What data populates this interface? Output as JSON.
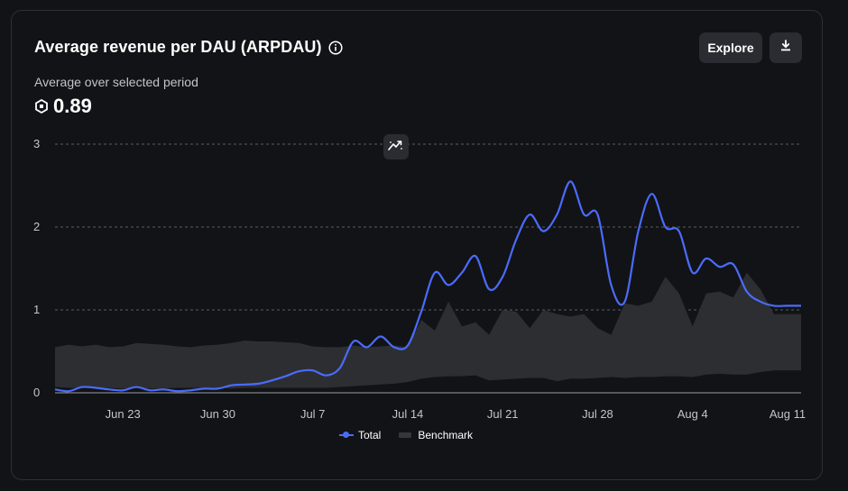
{
  "header": {
    "title": "Average revenue per DAU (ARPDAU)",
    "subtitle": "Average over selected period",
    "metric_value": "0.89",
    "explore_label": "Explore"
  },
  "icons": {
    "info": "info-icon",
    "currency": "robux-icon",
    "download": "download-icon",
    "trend": "trend-icon"
  },
  "colors": {
    "total": "#4b6bfb",
    "benchmark": "#2d2e32",
    "grid": "#5a5c62"
  },
  "chart_data": {
    "type": "line",
    "title": "Average revenue per DAU (ARPDAU)",
    "ylim": [
      0,
      3
    ],
    "yticks": [
      "0",
      "1",
      "2",
      "3"
    ],
    "xlim": [
      0,
      55
    ],
    "xticks": [
      {
        "label": "Jun 23",
        "x": 5
      },
      {
        "label": "Jun 30",
        "x": 12
      },
      {
        "label": "Jul 7",
        "x": 19
      },
      {
        "label": "Jul 14",
        "x": 26
      },
      {
        "label": "Jul 21",
        "x": 33
      },
      {
        "label": "Jul 28",
        "x": 40
      },
      {
        "label": "Aug 4",
        "x": 47
      },
      {
        "label": "Aug 11",
        "x": 54
      }
    ],
    "grid": true,
    "legend": [
      "Total",
      "Benchmark"
    ],
    "series": [
      {
        "name": "Total",
        "type": "line",
        "x": [
          0,
          1,
          2,
          3,
          4,
          5,
          6,
          7,
          8,
          9,
          10,
          11,
          12,
          13,
          14,
          15,
          16,
          17,
          18,
          19,
          20,
          21,
          22,
          23,
          24,
          25,
          26,
          27,
          28,
          29,
          30,
          31,
          32,
          33,
          34,
          35,
          36,
          37,
          38,
          39,
          40,
          41,
          42,
          43,
          44,
          45,
          46,
          47,
          48,
          49,
          50,
          51,
          52,
          53,
          54,
          55
        ],
        "values": [
          0.04,
          0.02,
          0.07,
          0.06,
          0.04,
          0.03,
          0.07,
          0.03,
          0.04,
          0.02,
          0.03,
          0.05,
          0.05,
          0.09,
          0.1,
          0.11,
          0.15,
          0.2,
          0.26,
          0.27,
          0.21,
          0.3,
          0.62,
          0.55,
          0.68,
          0.55,
          0.57,
          0.98,
          1.45,
          1.3,
          1.45,
          1.65,
          1.25,
          1.4,
          1.85,
          2.15,
          1.95,
          2.15,
          2.55,
          2.15,
          2.15,
          1.3,
          1.1,
          1.95,
          2.4,
          2.0,
          1.95,
          1.45,
          1.62,
          1.52,
          1.55,
          1.22,
          1.1,
          1.05,
          1.05,
          1.05
        ]
      },
      {
        "name": "Benchmark",
        "type": "band",
        "x": [
          0,
          1,
          2,
          3,
          4,
          5,
          6,
          7,
          8,
          9,
          10,
          11,
          12,
          13,
          14,
          15,
          16,
          17,
          18,
          19,
          20,
          21,
          22,
          23,
          24,
          25,
          26,
          27,
          28,
          29,
          30,
          31,
          32,
          33,
          34,
          35,
          36,
          37,
          38,
          39,
          40,
          41,
          42,
          43,
          44,
          45,
          46,
          47,
          48,
          49,
          50,
          51,
          52,
          53,
          54,
          55
        ],
        "upper": [
          0.55,
          0.58,
          0.56,
          0.58,
          0.55,
          0.56,
          0.6,
          0.59,
          0.58,
          0.56,
          0.55,
          0.57,
          0.58,
          0.6,
          0.63,
          0.62,
          0.62,
          0.61,
          0.6,
          0.56,
          0.55,
          0.55,
          0.57,
          0.55,
          0.56,
          0.57,
          0.55,
          0.88,
          0.75,
          1.1,
          0.8,
          0.85,
          0.7,
          1.0,
          0.98,
          0.78,
          1.0,
          0.95,
          0.92,
          0.95,
          0.78,
          0.7,
          1.08,
          1.05,
          1.1,
          1.4,
          1.2,
          0.8,
          1.2,
          1.22,
          1.15,
          1.45,
          1.25,
          0.95,
          0.95,
          0.95
        ],
        "lower": [
          0.07,
          0.06,
          0.06,
          0.05,
          0.06,
          0.05,
          0.06,
          0.05,
          0.05,
          0.06,
          0.06,
          0.06,
          0.06,
          0.05,
          0.06,
          0.06,
          0.06,
          0.06,
          0.06,
          0.06,
          0.06,
          0.07,
          0.08,
          0.09,
          0.1,
          0.11,
          0.13,
          0.17,
          0.19,
          0.2,
          0.2,
          0.21,
          0.15,
          0.16,
          0.17,
          0.18,
          0.18,
          0.14,
          0.17,
          0.17,
          0.18,
          0.19,
          0.18,
          0.19,
          0.19,
          0.2,
          0.2,
          0.19,
          0.22,
          0.23,
          0.22,
          0.22,
          0.25,
          0.27,
          0.27,
          0.27
        ]
      }
    ]
  }
}
